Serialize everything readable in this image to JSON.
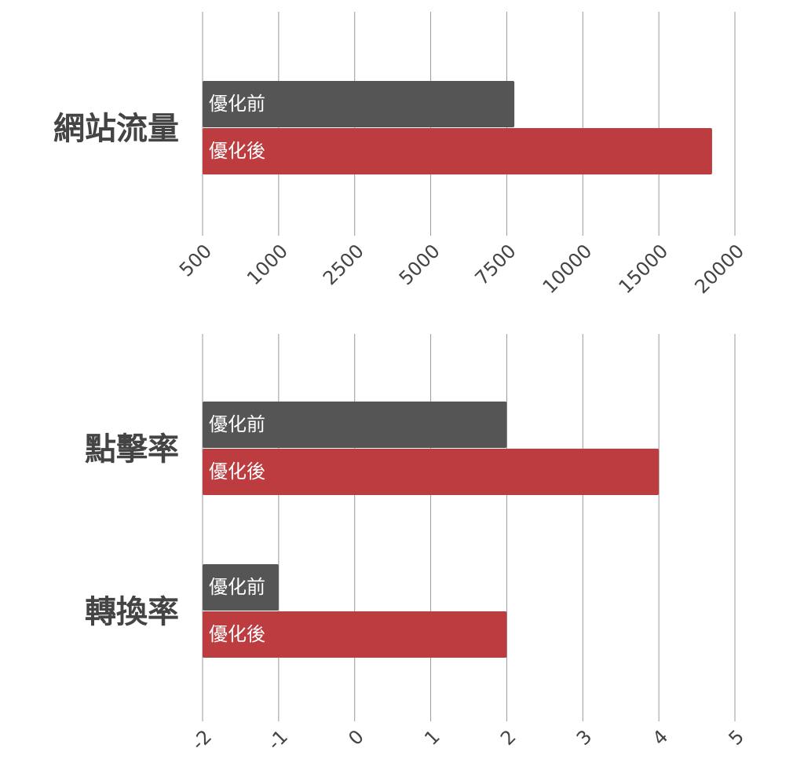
{
  "chart_data": [
    {
      "type": "bar",
      "orientation": "horizontal",
      "categories": [
        "網站流量"
      ],
      "series": [
        {
          "name": "優化前",
          "color": "#555555",
          "values": [
            7750
          ]
        },
        {
          "name": "優化後",
          "color": "#bc3c40",
          "values": [
            18500
          ]
        }
      ],
      "xlim": [
        500,
        20000
      ],
      "xticks": [
        500,
        1000,
        2500,
        5000,
        7500,
        10000,
        15000,
        20000
      ],
      "grid": true
    },
    {
      "type": "bar",
      "orientation": "horizontal",
      "categories": [
        "點擊率",
        "轉換率"
      ],
      "series": [
        {
          "name": "優化前",
          "color": "#555555",
          "values": [
            2,
            -1
          ]
        },
        {
          "name": "優化後",
          "color": "#bc3c40",
          "values": [
            4,
            2
          ]
        }
      ],
      "xlim": [
        -2,
        5
      ],
      "xticks": [
        -2,
        -1,
        0,
        1,
        2,
        3,
        4,
        5
      ],
      "grid": true
    }
  ]
}
